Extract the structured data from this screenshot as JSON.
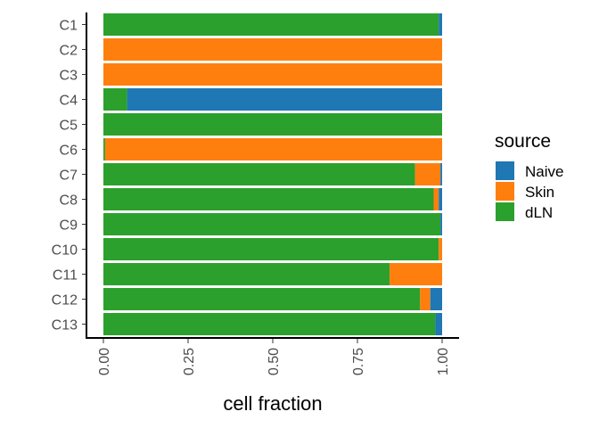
{
  "chart_data": {
    "type": "bar",
    "orientation": "horizontal",
    "stacked": true,
    "xlabel": "cell fraction",
    "ylabel": "",
    "xlim": [
      0,
      1
    ],
    "x_ticks": [
      "0.00",
      "0.25",
      "0.50",
      "0.75",
      "1.00"
    ],
    "x_tick_values": [
      0,
      0.25,
      0.5,
      0.75,
      1.0
    ],
    "categories": [
      "C1",
      "C2",
      "C3",
      "C4",
      "C5",
      "C6",
      "C7",
      "C8",
      "C9",
      "C10",
      "C11",
      "C12",
      "C13"
    ],
    "series": [
      {
        "name": "dLN",
        "color": "#2ca02c",
        "values": [
          0.99,
          0.0,
          0.0,
          0.07,
          1.0,
          0.005,
          0.92,
          0.975,
          0.995,
          0.99,
          0.845,
          0.935,
          0.98
        ]
      },
      {
        "name": "Skin",
        "color": "#ff7f0e",
        "values": [
          0.0,
          1.0,
          1.0,
          0.0,
          0.0,
          0.995,
          0.075,
          0.015,
          0.0,
          0.01,
          0.155,
          0.03,
          0.0
        ]
      },
      {
        "name": "Naive",
        "color": "#1f77b4",
        "values": [
          0.01,
          0.0,
          0.0,
          0.93,
          0.0,
          0.0,
          0.005,
          0.01,
          0.005,
          0.0,
          0.0,
          0.035,
          0.02
        ]
      }
    ],
    "legend": {
      "title": "source",
      "position": "right",
      "entries": [
        {
          "label": "Naive",
          "color": "#1f77b4"
        },
        {
          "label": "Skin",
          "color": "#ff7f0e"
        },
        {
          "label": "dLN",
          "color": "#2ca02c"
        }
      ]
    },
    "grid": false
  }
}
